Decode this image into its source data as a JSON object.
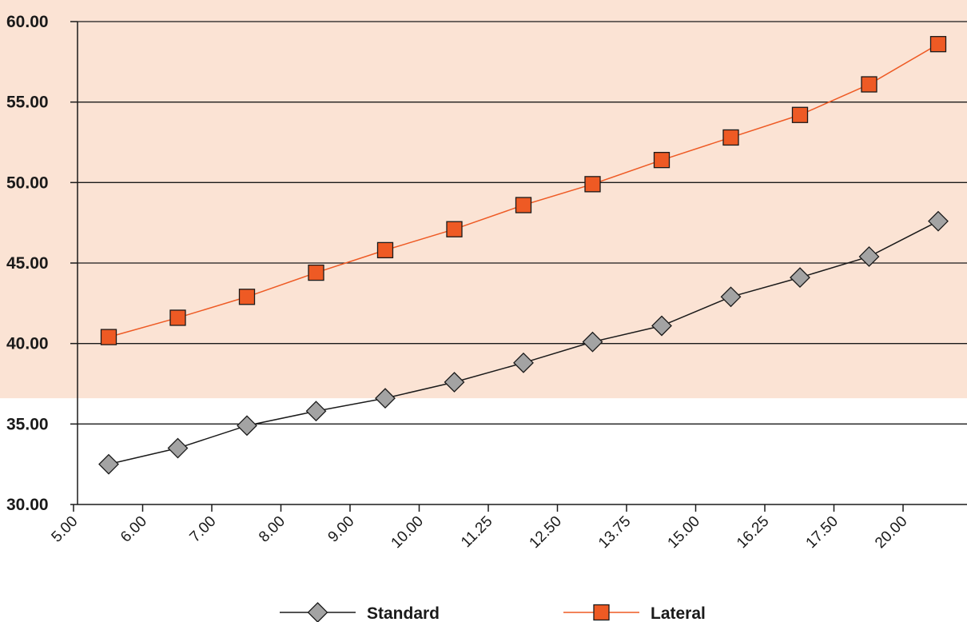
{
  "chart_data": {
    "type": "line",
    "categories": [
      "5.00",
      "6.00",
      "7.00",
      "8.00",
      "9.00",
      "10.00",
      "11.25",
      "12.50",
      "13.75",
      "15.00",
      "16.25",
      "17.50",
      "20.00"
    ],
    "series": [
      {
        "name": "Standard",
        "marker": "diamond",
        "color": "#1a1a1a",
        "marker_fill": "#a3a3a3",
        "values": [
          32.5,
          33.5,
          34.9,
          35.8,
          36.6,
          37.6,
          38.8,
          40.1,
          41.1,
          42.9,
          44.1,
          45.4,
          47.6
        ]
      },
      {
        "name": "Lateral",
        "marker": "square",
        "color": "#ee5a24",
        "marker_fill": "#ee5a24",
        "values": [
          40.4,
          41.6,
          42.9,
          44.4,
          45.8,
          47.1,
          48.6,
          49.9,
          51.4,
          52.8,
          54.2,
          56.1,
          58.6
        ]
      }
    ],
    "y_ticks": [
      "30.00",
      "35.00",
      "40.00",
      "45.00",
      "50.00",
      "55.00",
      "60.00"
    ],
    "ylim": [
      30,
      60
    ],
    "shaded_band_from": 36.6,
    "band_color": "#fbe3d4",
    "grid": true,
    "legend": "bottom-center",
    "title": "",
    "xlabel": "",
    "ylabel": ""
  }
}
